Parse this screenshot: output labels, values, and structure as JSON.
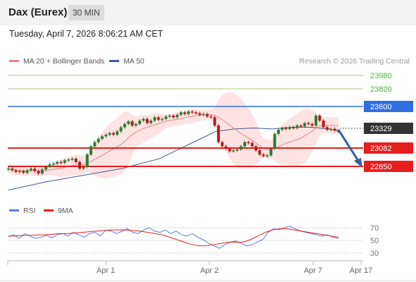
{
  "header": {
    "instrument": "Dax (Eurex)",
    "interval": "30 MIN"
  },
  "timestamp": "Tuesday, April 7, 2026 8:06:21 AM CET",
  "legend": {
    "ma20": "MA 20 + Bollinger Bands",
    "ma50": "MA 50",
    "copyright": "Research © 2026 Trading Central",
    "rsi": "RSI",
    "ma9": "9MA"
  },
  "colors": {
    "ma20": "#f08080",
    "ma50": "#3c5a9a",
    "bollinger_fill": "#fcdcdc",
    "resistance": "#e61e1e",
    "pivot": "#2f6fe0",
    "target": "#77c050",
    "candle_up": "#2e7d32",
    "candle_down": "#b71c1c",
    "price_tag": "#333333",
    "arrow": "#2f5fa8"
  },
  "price_levels": [
    {
      "value": "23980",
      "kind": "target"
    },
    {
      "value": "23820",
      "kind": "target"
    },
    {
      "value": "23600",
      "kind": "pivot"
    },
    {
      "value": "23329",
      "kind": "last"
    },
    {
      "value": "23082",
      "kind": "support"
    },
    {
      "value": "22850",
      "kind": "support"
    }
  ],
  "x_axis": [
    "Apr 1",
    "Apr 2",
    "Apr 7",
    "Apr 17"
  ],
  "rsi_axis": [
    "70",
    "50",
    "30"
  ],
  "chart_data": {
    "type": "candlestick",
    "price_range": [
      22600,
      24100
    ],
    "closes": [
      22880,
      22860,
      22840,
      22850,
      22830,
      22860,
      22880,
      22850,
      22820,
      22870,
      22900,
      22930,
      22940,
      22960,
      22950,
      22980,
      22990,
      23000,
      22960,
      22880,
      22900,
      23050,
      23150,
      23200,
      23240,
      23270,
      23290,
      23310,
      23290,
      23330,
      23380,
      23420,
      23450,
      23400,
      23420,
      23460,
      23480,
      23430,
      23460,
      23500,
      23470,
      23480,
      23510,
      23520,
      23500,
      23530,
      23560,
      23540,
      23570,
      23560,
      23550,
      23530,
      23540,
      23510,
      23500,
      23400,
      23200,
      23150,
      23120,
      23090,
      23100,
      23110,
      23150,
      23200,
      23190,
      23150,
      23100,
      23050,
      23030,
      23040,
      23120,
      23300,
      23350,
      23370,
      23360,
      23380,
      23370,
      23400,
      23390,
      23430,
      23420,
      23400,
      23520,
      23460,
      23380,
      23350,
      23360,
      23340,
      23329
    ],
    "ma50_points": [
      [
        0,
        22620
      ],
      [
        20,
        22720
      ],
      [
        40,
        22800
      ],
      [
        60,
        22880
      ],
      [
        80,
        23000
      ],
      [
        100,
        23220
      ],
      [
        110,
        23330
      ],
      [
        120,
        23360
      ],
      [
        130,
        23370
      ],
      [
        140,
        23360
      ],
      [
        150,
        23380
      ],
      [
        160,
        23380
      ],
      [
        170,
        23360
      ],
      [
        175,
        23340
      ]
    ],
    "rsi": [
      55,
      58,
      52,
      60,
      56,
      52,
      54,
      57,
      53,
      58,
      60,
      56,
      62,
      58,
      54,
      60,
      62,
      56,
      66,
      64,
      60,
      64,
      68,
      62,
      60,
      66,
      70,
      64,
      62,
      66,
      60,
      64,
      58,
      56,
      60,
      54,
      50,
      44,
      40,
      36,
      42,
      46,
      48,
      44,
      40,
      42,
      46,
      50,
      62,
      68,
      66,
      70,
      72,
      68,
      64,
      62,
      60,
      58,
      56,
      58,
      54,
      52
    ],
    "rsi9": [
      56,
      56,
      57,
      57,
      58,
      58,
      59,
      60,
      60,
      61,
      62,
      63,
      64,
      65,
      66,
      66,
      66,
      65,
      64,
      62,
      60,
      58,
      54,
      50,
      46,
      42,
      40,
      40,
      42,
      44,
      46,
      46,
      46,
      50,
      56,
      62,
      66,
      68,
      68,
      66,
      64,
      62,
      60,
      58,
      56,
      54
    ]
  }
}
